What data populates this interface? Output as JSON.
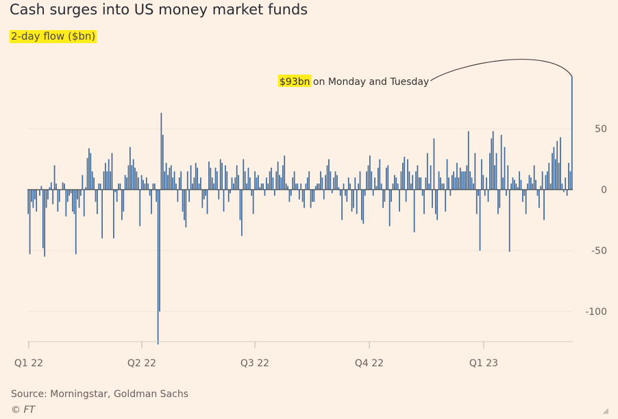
{
  "header": {
    "title": "Cash surges into US money market funds",
    "subtitle": "2-day flow ($bn)"
  },
  "footer": {
    "source": "Source: Morningstar, Goldman Sachs",
    "copyright": "© FT"
  },
  "colors": {
    "bar": "#3e6a9b",
    "background": "#fdf1e6",
    "highlight": "#ffec1a",
    "grid": "#efe2d6",
    "axis_text": "#66605c"
  },
  "icons": {
    "corner": "resize-grip-icon"
  },
  "chart_data": {
    "type": "bar",
    "title": "Cash surges into US money market funds",
    "subtitle": "2-day flow ($bn)",
    "xlabel": "",
    "ylabel": "",
    "ylim": [
      -125,
      100
    ],
    "yticks": [
      50,
      0,
      -50,
      -100
    ],
    "grid": true,
    "x_tick_labels": [
      "Q1 22",
      "Q2 22",
      "Q3 22",
      "Q4 22",
      "Q1 23"
    ],
    "annotation": {
      "highlight": "$93bn",
      "text": " on Monday and Tuesday"
    },
    "series": [
      {
        "values": [
          -20,
          -53,
          -10,
          -15,
          -8,
          -18,
          0,
          -5,
          3,
          -48,
          -55,
          -15,
          -8,
          2,
          6,
          -12,
          20,
          5,
          -18,
          -10,
          0,
          6,
          5,
          -22,
          -10,
          -5,
          -3,
          -18,
          -20,
          -53,
          -8,
          -15,
          -5,
          12,
          -22,
          2,
          26,
          34,
          30,
          15,
          10,
          -10,
          -20,
          5,
          5,
          -40,
          15,
          22,
          15,
          25,
          15,
          30,
          -40,
          -2,
          -10,
          5,
          5,
          -25,
          -18,
          12,
          10,
          20,
          35,
          20,
          25,
          18,
          15,
          10,
          -30,
          12,
          8,
          5,
          10,
          5,
          -5,
          -20,
          5,
          5,
          -10,
          -127,
          -100,
          63,
          45,
          15,
          22,
          12,
          18,
          20,
          10,
          15,
          5,
          -10,
          10,
          15,
          -18,
          -25,
          -31,
          15,
          -10,
          20,
          5,
          10,
          22,
          18,
          5,
          10,
          -15,
          -8,
          -5,
          -20,
          23,
          18,
          10,
          5,
          18,
          15,
          -8,
          25,
          22,
          -18,
          20,
          15,
          -10,
          -3,
          10,
          5,
          10,
          20,
          12,
          -25,
          -38,
          25,
          15,
          5,
          18,
          10,
          -5,
          -20,
          15,
          10,
          12,
          2,
          5,
          5,
          -5,
          10,
          5,
          15,
          18,
          10,
          -5,
          15,
          23,
          12,
          10,
          20,
          28,
          5,
          3,
          -10,
          -5,
          10,
          15,
          5,
          5,
          -8,
          5,
          -10,
          -15,
          5,
          10,
          15,
          -15,
          -10,
          -10,
          3,
          5,
          5,
          15,
          10,
          -8,
          12,
          20,
          25,
          15,
          -3,
          10,
          15,
          12,
          2,
          -5,
          -25,
          5,
          -5,
          -10,
          10,
          5,
          -18,
          -15,
          10,
          -20,
          5,
          15,
          -25,
          -28,
          -5,
          15,
          20,
          28,
          15,
          -5,
          10,
          3,
          18,
          25,
          5,
          -15,
          -10,
          18,
          20,
          -30,
          -10,
          5,
          12,
          10,
          5,
          -18,
          15,
          22,
          27,
          -10,
          25,
          15,
          5,
          12,
          -35,
          15,
          20,
          10,
          10,
          -5,
          -20,
          10,
          30,
          5,
          20,
          -15,
          42,
          -20,
          -25,
          15,
          10,
          5,
          5,
          -18,
          25,
          10,
          -5,
          12,
          15,
          10,
          22,
          10,
          18,
          15,
          15,
          15,
          20,
          48,
          15,
          10,
          5,
          30,
          -20,
          -5,
          -50,
          25,
          12,
          -5,
          10,
          -10,
          30,
          42,
          48,
          20,
          30,
          -20,
          -15,
          45,
          10,
          35,
          -5,
          20,
          -51,
          5,
          10,
          8,
          5,
          2,
          15,
          8,
          -10,
          -5,
          -20,
          5,
          12,
          10,
          5,
          20,
          8,
          -5,
          -15,
          3,
          15,
          -25,
          12,
          15,
          22,
          5,
          30,
          35,
          25,
          40,
          22,
          43,
          5,
          -2,
          10,
          -5,
          22,
          15,
          93
        ]
      }
    ]
  }
}
